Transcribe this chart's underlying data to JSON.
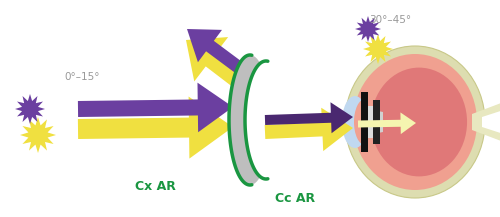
{
  "yellow": "#F0E040",
  "purple": "#6B3FA0",
  "purple_dark": "#4A2870",
  "green": "#1A9641",
  "gray_lens": "#C0C0C0",
  "eye_outer_color": "#E0E0B8",
  "eye_pink": "#F09080",
  "eye_inner_pink": "#E07070",
  "eye_blue": "#B8D8F0",
  "eye_optic_tan": "#D8D8A8",
  "label_color": "#999999",
  "cx_ar_text": "Cx AR",
  "cc_ar_text": "Cc AR",
  "label1": "0°–15°",
  "label2": "30°–45°",
  "figw": 5.0,
  "figh": 2.17,
  "dpi": 100
}
